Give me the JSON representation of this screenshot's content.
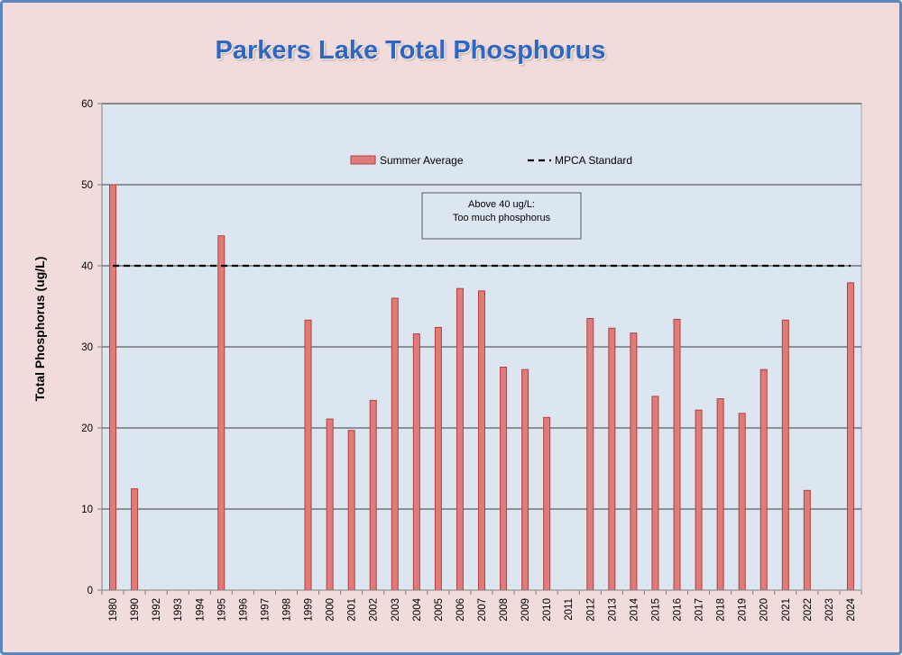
{
  "chart_data": {
    "type": "bar",
    "title": "Parkers Lake Total Phosphorus",
    "ylabel": "Total Phosphorus (ug/L)",
    "xlabel": "",
    "ylim": [
      0,
      60
    ],
    "yticks": [
      0,
      10,
      20,
      30,
      40,
      50,
      60
    ],
    "grid": true,
    "legend_position": "top",
    "categories": [
      "1980",
      "1990",
      "1992",
      "1993",
      "1994",
      "1995",
      "1996",
      "1997",
      "1998",
      "1999",
      "2000",
      "2001",
      "2002",
      "2003",
      "2004",
      "2005",
      "2006",
      "2007",
      "2008",
      "2009",
      "2010",
      "2011",
      "2012",
      "2013",
      "2014",
      "2015",
      "2016",
      "2017",
      "2018",
      "2019",
      "2020",
      "2021",
      "2022",
      "2023",
      "2024"
    ],
    "series": [
      {
        "name": "Summer Average",
        "color": "#e07b79",
        "values": [
          50,
          12.5,
          null,
          null,
          null,
          43.7,
          null,
          null,
          null,
          33.3,
          21.1,
          19.7,
          23.4,
          36.0,
          31.6,
          32.4,
          37.2,
          36.9,
          27.5,
          27.2,
          21.3,
          null,
          33.5,
          32.3,
          31.7,
          23.9,
          33.4,
          22.2,
          23.6,
          21.8,
          27.2,
          33.3,
          12.3,
          null,
          37.9
        ]
      }
    ],
    "reference_lines": [
      {
        "name": "MPCA Standard",
        "value": 40,
        "style": "dashed",
        "color": "#000000"
      }
    ],
    "annotations": [
      {
        "text_lines": [
          "Above 40 ug/L:",
          "Too much phosphorus"
        ]
      }
    ]
  },
  "colors": {
    "frame_background": "#f2dcdb",
    "plot_background": "#dce6f1",
    "frame_border": "#5b86c0",
    "title": "#2f66c4",
    "bar_fill": "#e07b79",
    "bar_stroke": "#b0413e"
  }
}
